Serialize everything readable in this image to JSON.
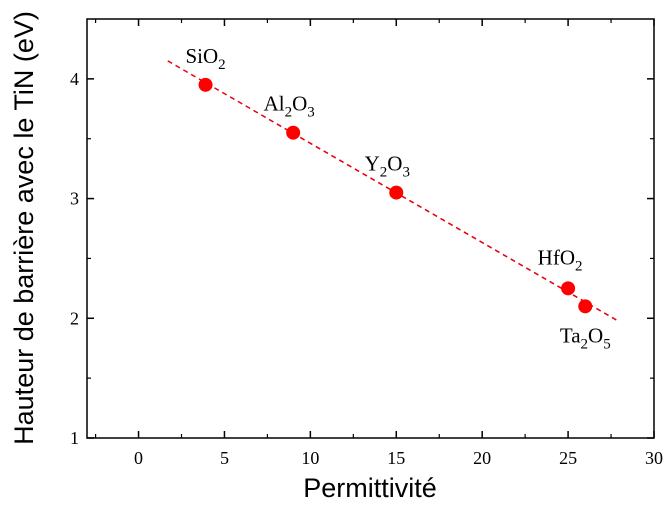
{
  "chart_data": {
    "type": "scatter",
    "title": "",
    "xlabel": "Permittivité",
    "ylabel": "Hauteur de barrière avec le TiN (eV)",
    "xlim": [
      -3,
      30
    ],
    "ylim": [
      1,
      4.5
    ],
    "xticks": [
      0,
      5,
      10,
      15,
      20,
      25,
      30
    ],
    "yticks": [
      1,
      2,
      3,
      4
    ],
    "grid": false,
    "points": [
      {
        "label": "SiO2",
        "label_html": "SiO<tspan class='sub' dy='6'>2</tspan>",
        "parts": [
          {
            "t": "SiO"
          },
          {
            "t": "2",
            "sub": true
          }
        ],
        "x": 3.9,
        "y": 3.95
      },
      {
        "label": "Al2O3",
        "parts": [
          {
            "t": "Al"
          },
          {
            "t": "2",
            "sub": true
          },
          {
            "t": "O"
          },
          {
            "t": "3",
            "sub": true
          }
        ],
        "x": 9,
        "y": 3.55
      },
      {
        "label": "Y2O3",
        "parts": [
          {
            "t": "Y"
          },
          {
            "t": "2",
            "sub": true
          },
          {
            "t": "O"
          },
          {
            "t": "3",
            "sub": true
          }
        ],
        "x": 15,
        "y": 3.05
      },
      {
        "label": "HfO2",
        "parts": [
          {
            "t": "HfO"
          },
          {
            "t": "2",
            "sub": true
          }
        ],
        "x": 25,
        "y": 2.25
      },
      {
        "label": "Ta2O5",
        "parts": [
          {
            "t": "Ta"
          },
          {
            "t": "2",
            "sub": true
          },
          {
            "t": "O"
          },
          {
            "t": "5",
            "sub": true
          }
        ],
        "x": 26,
        "y": 2.1
      }
    ],
    "fit_line": {
      "x": [
        1.7,
        28
      ],
      "y": [
        4.15,
        1.97
      ],
      "style": "dashed",
      "color": "#e8000b"
    },
    "point_color": "#ff0000"
  }
}
